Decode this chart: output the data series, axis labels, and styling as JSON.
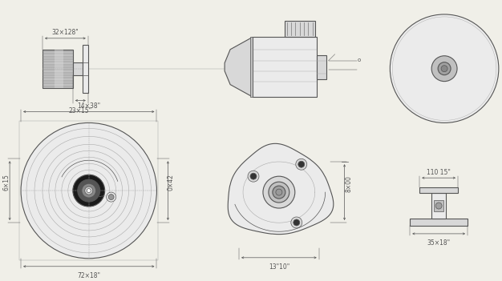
{
  "bg_color": "#f0efe8",
  "line_color": "#555555",
  "dim_color": "#555555",
  "mid_gray": "#aaaaaa",
  "fill_light": "#ebebeb",
  "fill_mid": "#d8d8d8",
  "fill_dark": "#c0c0c0",
  "fill_darker": "#a0a0a0",
  "dims": {
    "top_left_width": "32×128\"",
    "top_left_bottom": "23×15\"",
    "bottom_left_width": "14×38\"",
    "bottom_left_height": "6×15",
    "bottom_left_right": "0×42",
    "bottom_left_bottom": "72×18\"",
    "bottom_mid_bottom": "13\"10\"",
    "bottom_mid_height": "8×00",
    "bottom_right_width": "110 15\"",
    "bottom_right_bottom": "35×18\""
  }
}
